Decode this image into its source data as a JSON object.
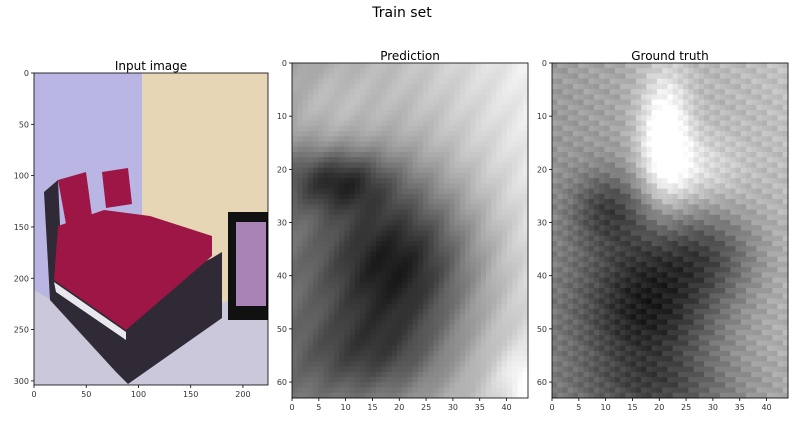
{
  "figure": {
    "suptitle": "Train set"
  },
  "chart_data": [
    {
      "type": "image",
      "title": "Input image",
      "xlim": [
        0,
        224
      ],
      "ylim": [
        304,
        0
      ],
      "xticks": [
        0,
        50,
        100,
        150,
        200
      ],
      "yticks": [
        0,
        50,
        100,
        150,
        200,
        250,
        300
      ]
    },
    {
      "type": "heatmap",
      "title": "Prediction",
      "colormap": "gray",
      "xlim": [
        0,
        44
      ],
      "ylim": [
        63,
        0
      ],
      "xticks": [
        0,
        5,
        10,
        15,
        20,
        25,
        30,
        35,
        40
      ],
      "yticks": [
        0,
        10,
        20,
        30,
        40,
        50,
        60
      ]
    },
    {
      "type": "heatmap",
      "title": "Ground truth",
      "colormap": "gray",
      "xlim": [
        0,
        44
      ],
      "ylim": [
        63,
        0
      ],
      "xticks": [
        0,
        5,
        10,
        15,
        20,
        25,
        30,
        35,
        40
      ],
      "yticks": [
        0,
        10,
        20,
        30,
        40,
        50,
        60
      ]
    }
  ],
  "colors": {
    "wall_left": "#b9b6e4",
    "wall_right": "#e7d6b6",
    "floor": "#cbc8dc",
    "bedspread": "#9e1645",
    "bed_frame": "#2f2a35",
    "frame_border": "#111111",
    "painting": "#a983b6"
  }
}
